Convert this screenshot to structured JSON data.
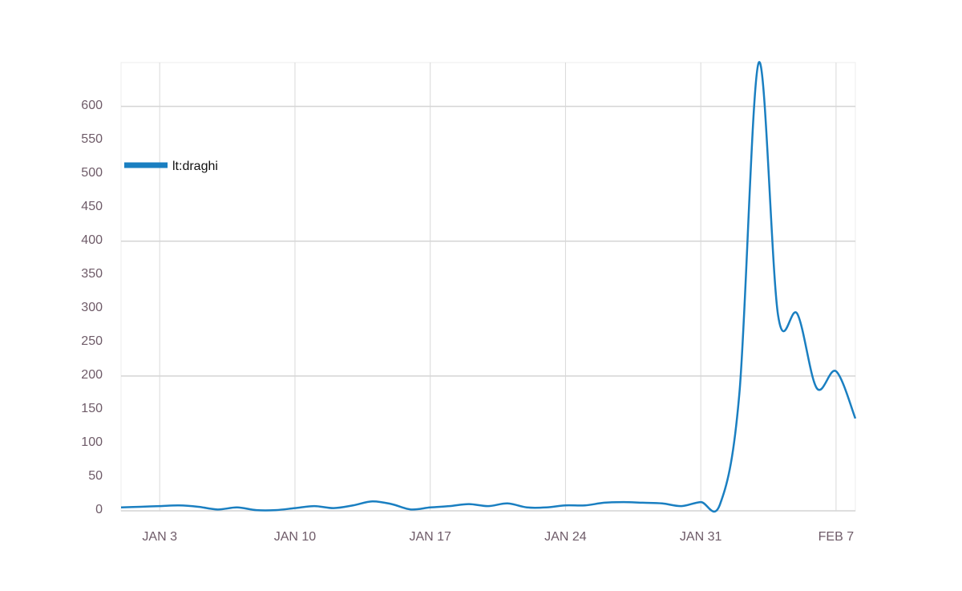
{
  "chart_data": {
    "type": "line",
    "x": [
      1,
      2,
      3,
      4,
      5,
      6,
      7,
      8,
      9,
      10,
      11,
      12,
      13,
      14,
      15,
      16,
      17,
      18,
      19,
      20,
      21,
      22,
      23,
      24,
      25,
      26,
      27,
      28,
      29,
      30,
      31,
      32,
      33,
      34,
      35,
      36,
      37,
      38,
      39
    ],
    "series": [
      {
        "name": "lt:draghi",
        "color": "#1a7fc1",
        "values": [
          5,
          6,
          7,
          8,
          6,
          2,
          5,
          1,
          1,
          4,
          7,
          4,
          8,
          14,
          10,
          2,
          5,
          7,
          10,
          7,
          11,
          5,
          5,
          8,
          8,
          12,
          13,
          12,
          11,
          7,
          13,
          10,
          175,
          665,
          290,
          292,
          182,
          207,
          137
        ]
      }
    ],
    "xlim": [
      1,
      39
    ],
    "xticks": [
      {
        "value": 3,
        "label": "JAN 3"
      },
      {
        "value": 10,
        "label": "JAN 10"
      },
      {
        "value": 17,
        "label": "JAN 17"
      },
      {
        "value": 24,
        "label": "JAN 24"
      },
      {
        "value": 31,
        "label": "JAN 31"
      },
      {
        "value": 38,
        "label": "FEB 7"
      }
    ],
    "ylim": [
      0,
      665
    ],
    "yticks": [
      0,
      50,
      100,
      150,
      200,
      250,
      300,
      350,
      400,
      450,
      500,
      550,
      600
    ],
    "ygrid": [
      0,
      200,
      400,
      600
    ],
    "grid": true
  }
}
